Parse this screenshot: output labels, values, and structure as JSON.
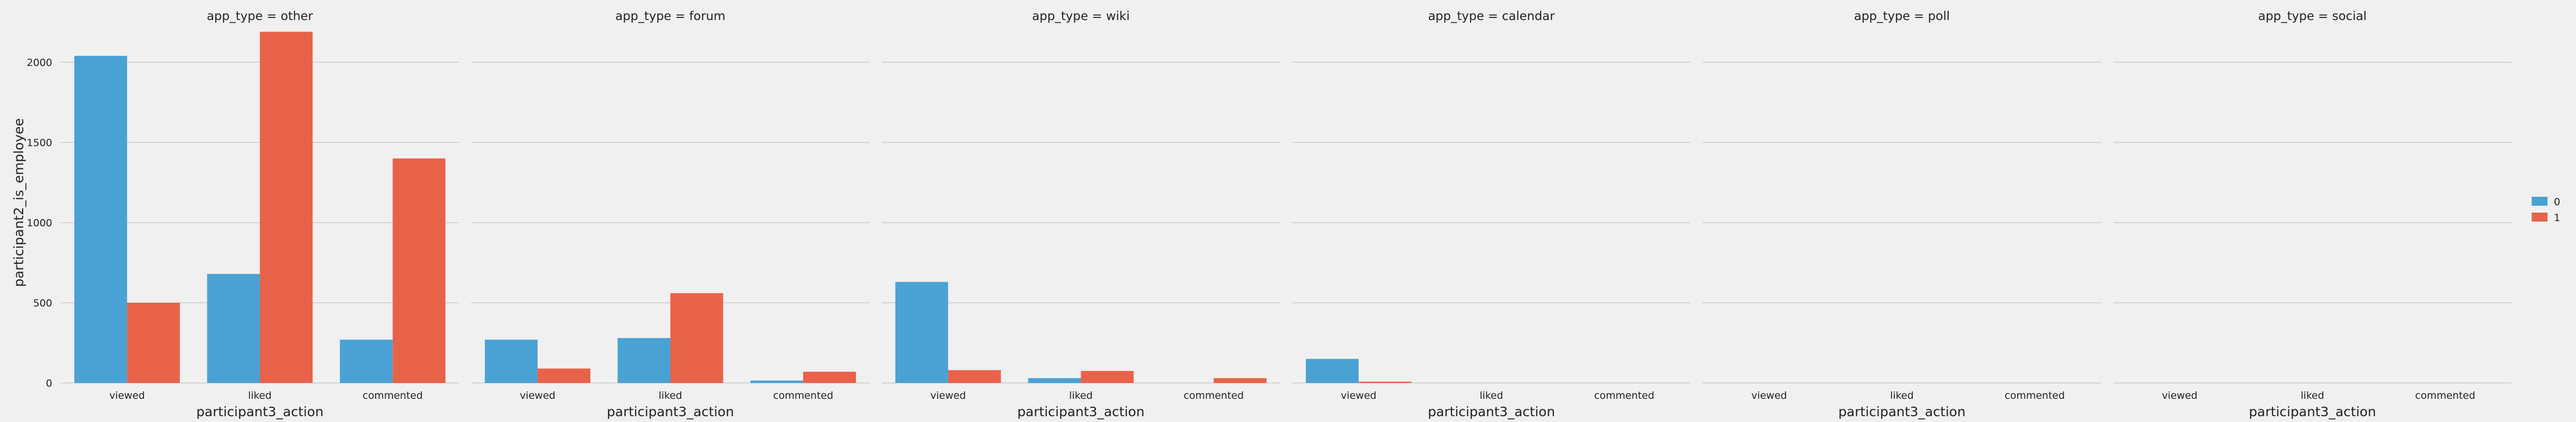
{
  "chart_data": {
    "type": "bar",
    "facet_label": "app_type",
    "facets": [
      "other",
      "forum",
      "wiki",
      "calendar",
      "poll",
      "social"
    ],
    "categories": [
      "viewed",
      "liked",
      "commented"
    ],
    "xlabel": "participant3_action",
    "ylabel": "participant2_is_employee",
    "ylim": [
      0,
      2250
    ],
    "yticks": [
      0,
      500,
      1000,
      1500,
      2000
    ],
    "grid": true,
    "legend_position": "right",
    "series": [
      {
        "name": "0",
        "color": "#4aa1d3",
        "values": [
          [
            2040,
            680,
            270
          ],
          [
            270,
            280,
            15
          ],
          [
            630,
            30,
            0
          ],
          [
            150,
            0,
            0
          ],
          [
            0,
            0,
            0
          ],
          [
            0,
            0,
            0
          ]
        ]
      },
      {
        "name": "1",
        "color": "#e8624a",
        "values": [
          [
            500,
            2190,
            1400
          ],
          [
            90,
            560,
            70
          ],
          [
            80,
            75,
            30
          ],
          [
            8,
            0,
            0
          ],
          [
            0,
            0,
            0
          ],
          [
            0,
            0,
            0
          ]
        ]
      }
    ]
  }
}
